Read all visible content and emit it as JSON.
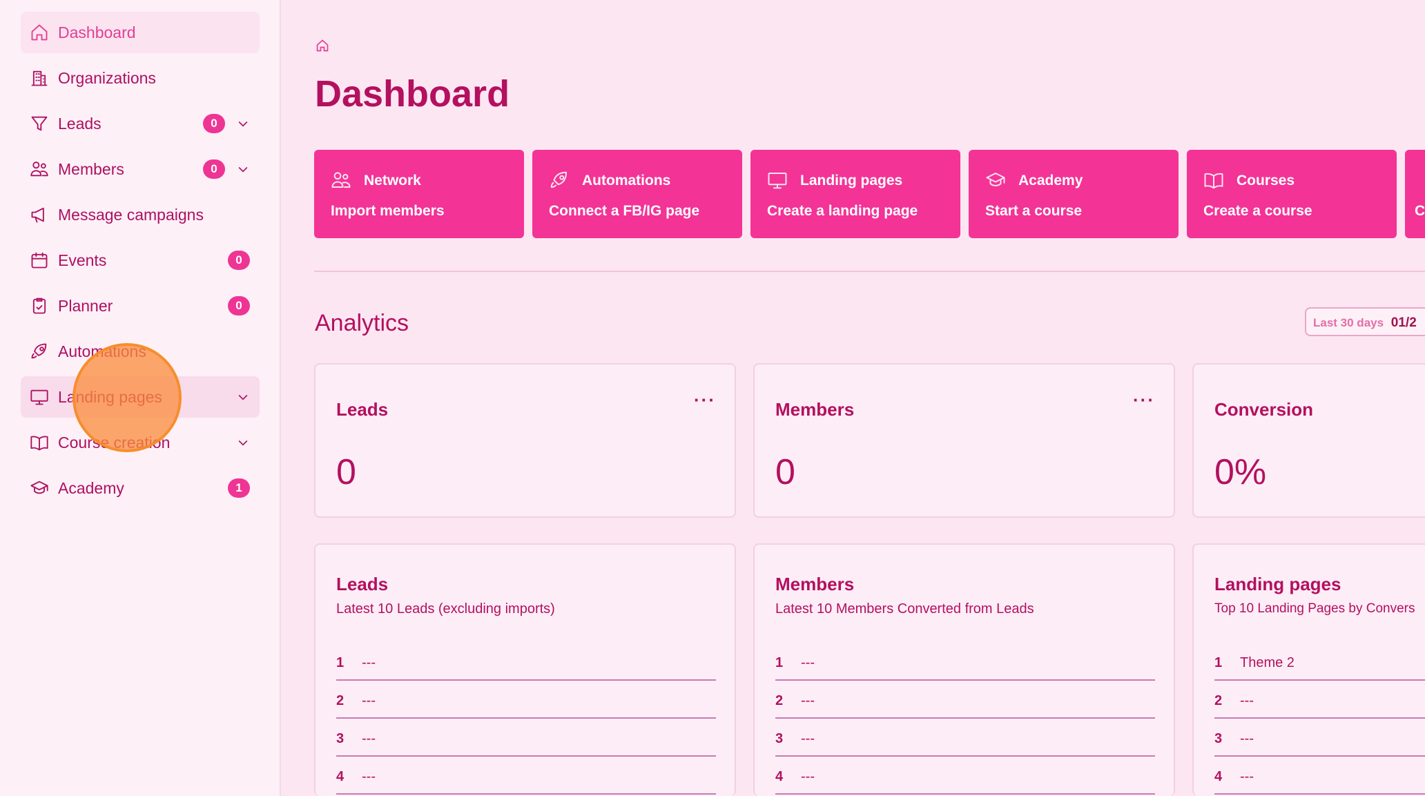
{
  "sidebar": {
    "items": [
      {
        "label": "Dashboard",
        "icon": "home-icon"
      },
      {
        "label": "Organizations",
        "icon": "building-icon"
      },
      {
        "label": "Leads",
        "icon": "funnel-icon",
        "badge": "0",
        "expandable": true
      },
      {
        "label": "Members",
        "icon": "users-icon",
        "badge": "0",
        "expandable": true
      },
      {
        "label": "Message campaigns",
        "icon": "megaphone-icon"
      },
      {
        "label": "Events",
        "icon": "calendar-icon",
        "badge": "0"
      },
      {
        "label": "Planner",
        "icon": "clipboard-icon",
        "badge": "0"
      },
      {
        "label": "Automations",
        "icon": "rocket-icon"
      },
      {
        "label": "Landing pages",
        "icon": "monitor-icon",
        "expandable": true
      },
      {
        "label": "Course creation",
        "icon": "book-icon",
        "expandable": true
      },
      {
        "label": "Academy",
        "icon": "graduation-cap-icon",
        "badge": "1"
      }
    ]
  },
  "header": {
    "title": "Dashboard"
  },
  "quick_actions": [
    {
      "title": "Network",
      "subtitle": "Import members",
      "icon": "users-icon"
    },
    {
      "title": "Automations",
      "subtitle": "Connect a FB/IG page",
      "icon": "rocket-icon"
    },
    {
      "title": "Landing pages",
      "subtitle": "Create a landing page",
      "icon": "monitor-icon"
    },
    {
      "title": "Academy",
      "subtitle": "Start a course",
      "icon": "graduation-cap-icon"
    },
    {
      "title": "Courses",
      "subtitle": "Create a course",
      "icon": "book-icon"
    },
    {
      "title": "",
      "subtitle": "C"
    }
  ],
  "analytics": {
    "title": "Analytics",
    "range_label": "Last 30 days",
    "range_value": "01/2"
  },
  "stats": [
    {
      "title": "Leads",
      "value": "0",
      "menu": "···"
    },
    {
      "title": "Members",
      "value": "0",
      "menu": "···"
    },
    {
      "title": "Conversion",
      "value": "0%"
    }
  ],
  "lists": [
    {
      "title": "Leads",
      "subtitle": "Latest 10 Leads (excluding imports)",
      "rows": [
        [
          "1",
          "---"
        ],
        [
          "2",
          "---"
        ],
        [
          "3",
          "---"
        ],
        [
          "4",
          "---"
        ]
      ]
    },
    {
      "title": "Members",
      "subtitle": "Latest 10 Members Converted from Leads",
      "rows": [
        [
          "1",
          "---"
        ],
        [
          "2",
          "---"
        ],
        [
          "3",
          "---"
        ],
        [
          "4",
          "---"
        ]
      ]
    },
    {
      "title": "Landing pages",
      "subtitle": "Top 10 Landing Pages by Convers",
      "rows": [
        [
          "1",
          "Theme 2"
        ],
        [
          "2",
          "---"
        ],
        [
          "3",
          "---"
        ],
        [
          "4",
          "---"
        ]
      ]
    }
  ],
  "colors": {
    "accent": "#f43397",
    "text": "#b3105f",
    "background": "#fce6f1"
  }
}
